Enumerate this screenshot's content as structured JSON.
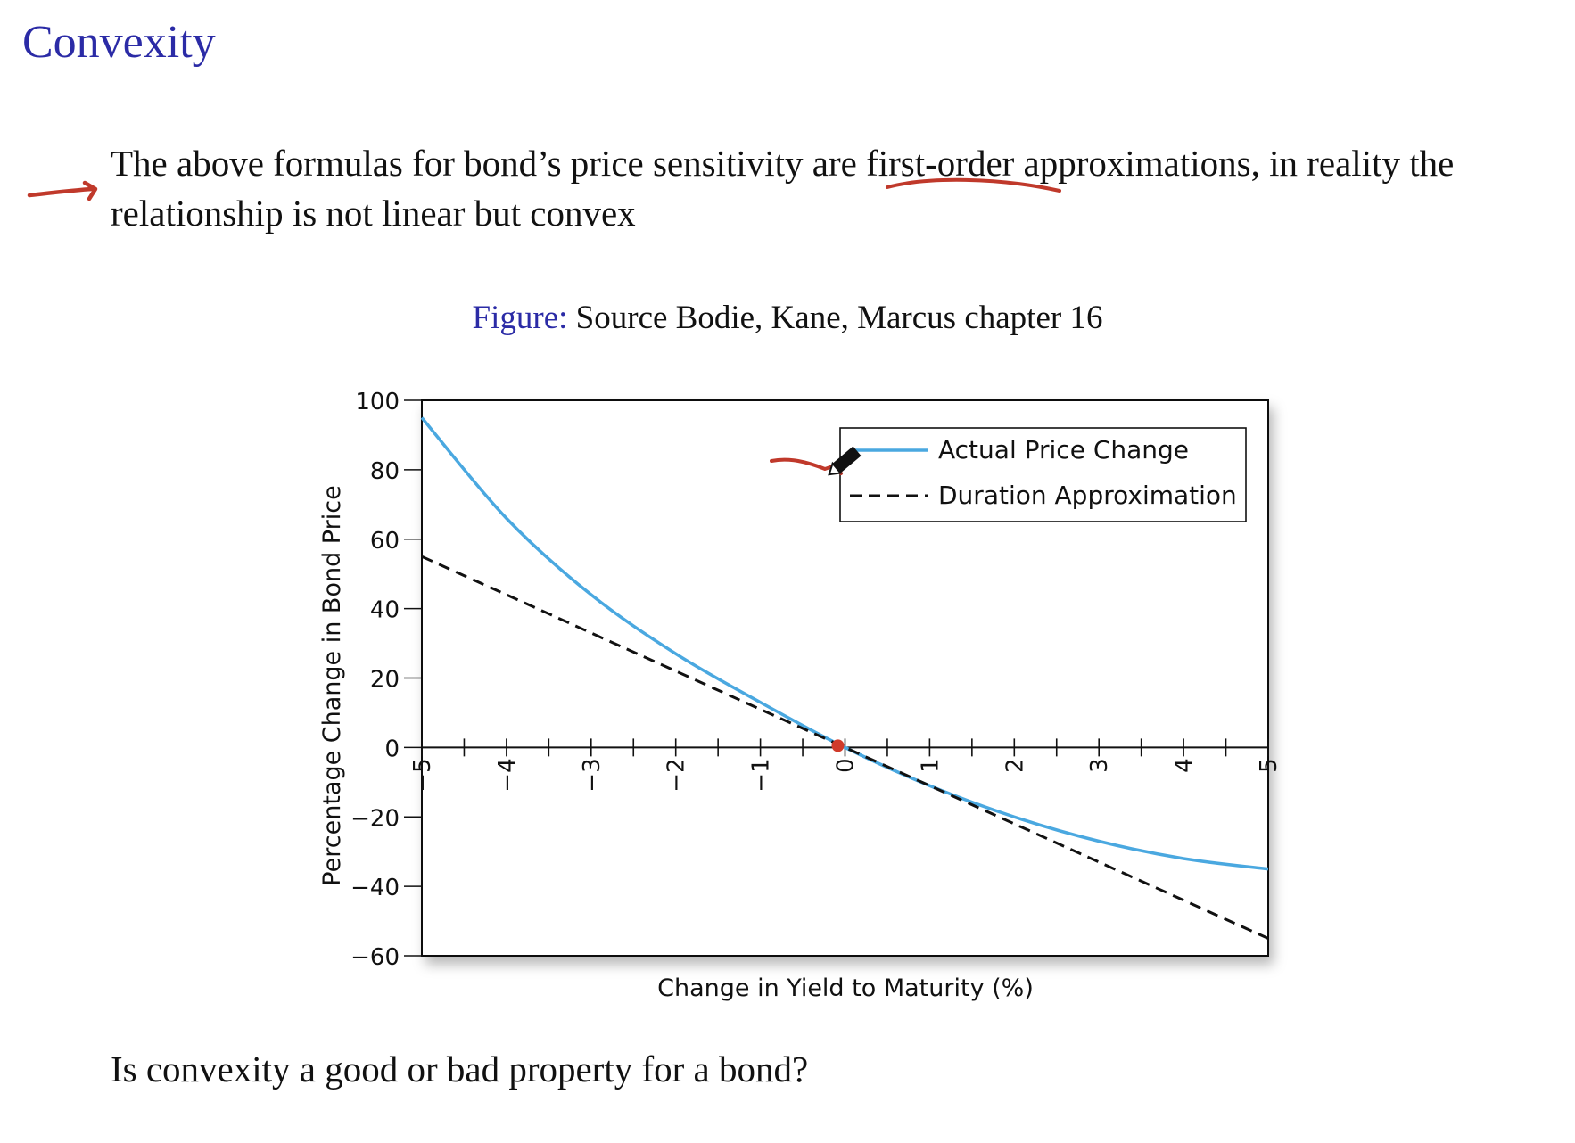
{
  "slide": {
    "title": "Convexity",
    "paragraph": "The above formulas for bond’s price sensitivity are first-order approximations, in reality the relationship is not linear but convex",
    "caption_label": "Figure:",
    "caption_text": "Source Bodie, Kane, Marcus chapter 16",
    "question": "Is convexity a good or bad property for a bond?"
  },
  "annotations": {
    "pen_color": "#c0392b",
    "marks": [
      "arrow pointing to paragraph",
      "underline under 'are first-order'",
      "squiggle at legend",
      "dot at origin"
    ]
  },
  "chart_data": {
    "type": "line",
    "xlabel": "Change in Yield to Maturity (%)",
    "ylabel": "Percentage Change in Bond Price",
    "xlim": [
      -5,
      5
    ],
    "ylim": [
      -60,
      100
    ],
    "x_ticks": [
      -5,
      -4,
      -3,
      -2,
      -1,
      0,
      1,
      2,
      3,
      4,
      5
    ],
    "x_tick_labels": [
      "−5",
      "−4",
      "−3",
      "−2",
      "−1",
      "0",
      "1",
      "2",
      "3",
      "4",
      "5"
    ],
    "y_ticks": [
      100,
      80,
      60,
      40,
      20,
      0,
      -20,
      -40,
      -60
    ],
    "y_tick_labels": [
      "100",
      "80",
      "60",
      "40",
      "20",
      "0",
      "−20",
      "−40",
      "−60"
    ],
    "legend_position": "top-right",
    "series": [
      {
        "name": "Actual Price Change",
        "color": "#4aa8e0",
        "style": "solid",
        "x": [
          -5,
          -4,
          -3,
          -2,
          -1,
          0,
          1,
          2,
          3,
          4,
          5
        ],
        "y": [
          95,
          66,
          44,
          27,
          13,
          0,
          -11,
          -20,
          -27,
          -32,
          -35
        ]
      },
      {
        "name": "Duration Approximation",
        "color": "#111111",
        "style": "dashed",
        "x": [
          -5,
          5
        ],
        "y": [
          55,
          -55
        ]
      }
    ]
  }
}
